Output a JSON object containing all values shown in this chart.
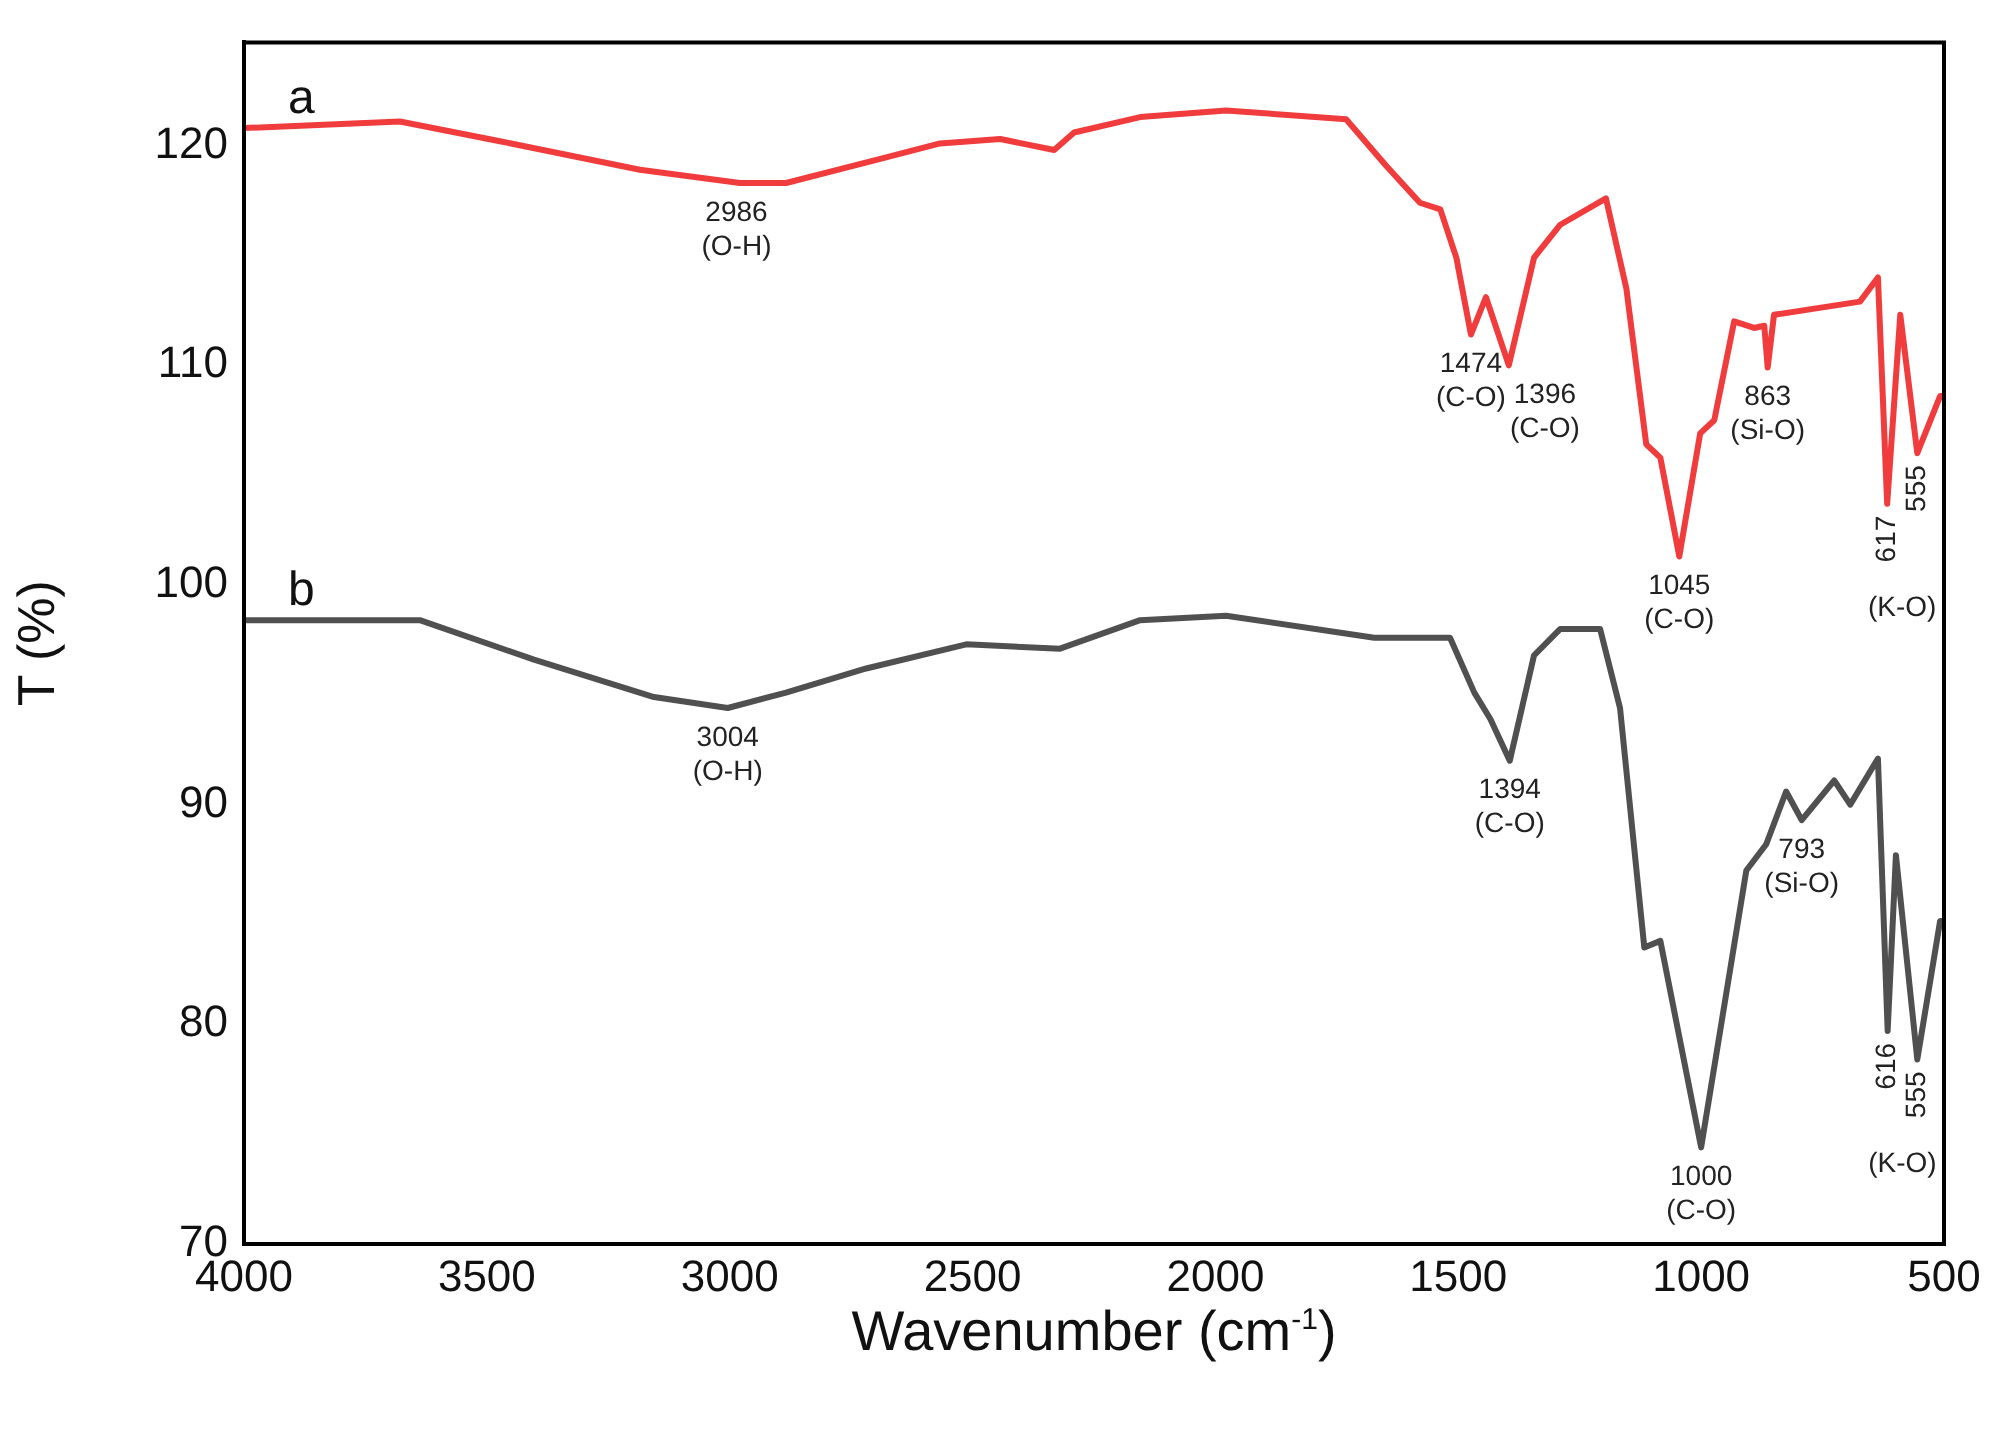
{
  "chart_data": {
    "type": "line",
    "xlabel": "Wavenumber (cm$^{-1}$)",
    "ylabel": "T (%)",
    "xlim": [
      4000,
      500
    ],
    "ylim": [
      70,
      124.7
    ],
    "xticks": [
      4000,
      3500,
      3000,
      2500,
      2000,
      1500,
      1000,
      500
    ],
    "yticks": [
      70,
      80,
      90,
      100,
      110,
      120
    ],
    "marker": "none",
    "line_style": "solid",
    "series": [
      {
        "name": "a",
        "color": "#f03c3c",
        "x": [
          4000,
          3679,
          3473,
          3185,
          2979,
          2884,
          2690,
          2567,
          2443,
          2332,
          2291,
          2155,
          1978,
          1731,
          1649,
          1579,
          1537,
          1504,
          1474,
          1443,
          1396,
          1344,
          1290,
          1196,
          1154,
          1113,
          1084,
          1045,
          1002,
          973,
          932,
          891,
          870,
          863,
          850,
          673,
          636,
          617,
          590,
          555,
          508,
          500
        ],
        "values": [
          120.8,
          121.1,
          120.2,
          118.9,
          118.3,
          118.3,
          119.4,
          120.1,
          120.3,
          119.8,
          120.6,
          121.3,
          121.6,
          121.2,
          119.1,
          117.4,
          117.1,
          114.9,
          111.4,
          113.1,
          110.0,
          114.9,
          116.4,
          117.6,
          113.5,
          106.4,
          105.8,
          101.3,
          106.9,
          107.5,
          112.0,
          111.7,
          111.8,
          109.9,
          112.3,
          112.9,
          114.0,
          103.7,
          112.3,
          106.0,
          108.6,
          108.6
        ]
      },
      {
        "name": "b",
        "color": "#505050",
        "x": [
          4000,
          3638,
          3403,
          3156,
          3004,
          2884,
          2719,
          2513,
          2320,
          2155,
          1978,
          1673,
          1517,
          1467,
          1434,
          1394,
          1344,
          1290,
          1208,
          1167,
          1117,
          1084,
          1000,
          907,
          866,
          825,
          793,
          726,
          693,
          636,
          616,
          599,
          555,
          508,
          500
        ],
        "values": [
          98.4,
          98.4,
          96.6,
          94.9,
          94.4,
          95.1,
          96.2,
          97.3,
          97.1,
          98.4,
          98.6,
          97.6,
          97.6,
          95.1,
          93.9,
          92.0,
          96.8,
          98.0,
          98.0,
          94.4,
          83.5,
          83.8,
          74.4,
          87.0,
          88.2,
          90.6,
          89.3,
          91.1,
          90.0,
          92.1,
          79.7,
          87.7,
          78.4,
          84.7,
          84.7
        ]
      }
    ],
    "annotations": [
      {
        "text": "2986\n(O-H)",
        "x": 2986,
        "y": 118.3
      },
      {
        "text": "1474\n(C-O)",
        "x": 1474,
        "y": 111.4
      },
      {
        "text": "1396\n(C-O)",
        "x": 1396,
        "y": 110.0
      },
      {
        "text": "863\n(Si-O)",
        "x": 863,
        "y": 109.9
      },
      {
        "text": "1045\n(C-O)",
        "x": 1045,
        "y": 101.3
      },
      {
        "text": "617",
        "x": 617,
        "y": 103.7
      },
      {
        "text": "555",
        "x": 555,
        "y": 106.0
      },
      "(K-O)",
      {
        "text": "3004\n(O-H)",
        "x": 3004,
        "y": 94.4
      },
      {
        "text": "1394\n(C-O)",
        "x": 1394,
        "y": 92.0
      },
      {
        "text": "1000\n(C-O)",
        "x": 1000,
        "y": 74.4
      },
      {
        "text": "793\n(Si-O)",
        "x": 793,
        "y": 89.3
      },
      {
        "text": "616",
        "x": 616,
        "y": 79.7
      },
      {
        "text": "555",
        "x": 555,
        "y": 78.4
      },
      "(K-O)"
    ]
  }
}
